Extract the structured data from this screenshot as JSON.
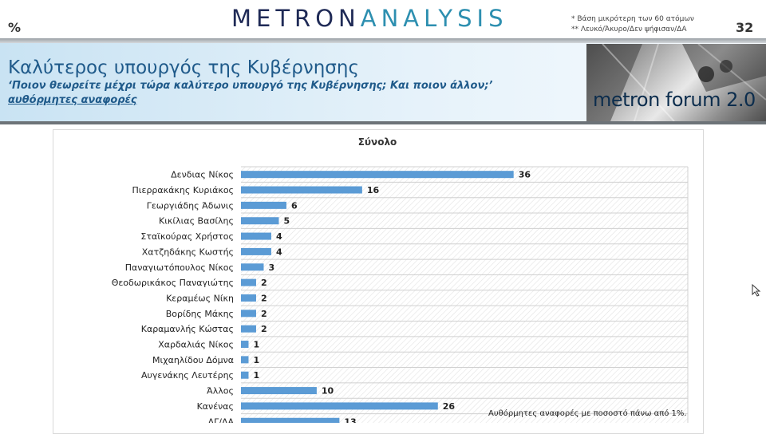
{
  "header": {
    "percent_symbol": "%",
    "logo_part1": "METRON",
    "logo_part2": "ANALYSIS",
    "note1": "*  Βάση μικρότερη των 60 ατόμων",
    "note2": "** Λευκό/Άκυρο/Δεν ψήφισαν/ΔΑ",
    "page_number": "32",
    "title": "Καλύτερος υπουργός της Κυβέρνησης",
    "subtitle": "‘Ποιον θεωρείτε μέχρι τώρα καλύτερο υπουργό της Κυβέρνησης; Και ποιον άλλον;’",
    "subtitle2": "αυθόρμητες αναφορές",
    "photo_caption": "metron forum 2.0"
  },
  "footnote": "Αυθόρμητες αναφορές με ποσοστό πάνω από 1%.",
  "colors": {
    "bar": "#5b9bd5",
    "title": "#1f5a8a",
    "logo_dark": "#1f2a56",
    "logo_light": "#2d8fb0"
  },
  "chart_data": {
    "type": "bar",
    "orientation": "horizontal",
    "title": "Σύνολο",
    "categories": [
      "Δενδιας Νίκος",
      "Πιερρακάκης Κυριάκος",
      "Γεωργιάδης Άδωνις",
      "Κικίλιας Βασίλης",
      "Σταϊκούρας Χρήστος",
      "Χατζηδάκης Κωστής",
      "Παναγιωτόπουλος Νίκος",
      "Θεοδωρικάκος Παναγιώτης",
      "Κεραμέως Νίκη",
      "Βορίδης Μάκης",
      "Καραμανλής Κώστας",
      "Χαρδαλιάς Νίκος",
      "Μιχαηλίδου Δόμνα",
      "Αυγενάκης Λευτέρης",
      "Άλλος",
      "Κανένας",
      "ΔΓ/ΔΑ"
    ],
    "values": [
      36,
      16,
      6,
      5,
      4,
      4,
      3,
      2,
      2,
      2,
      2,
      1,
      1,
      1,
      10,
      26,
      13
    ],
    "xlim": [
      0,
      59
    ],
    "grid": true
  }
}
